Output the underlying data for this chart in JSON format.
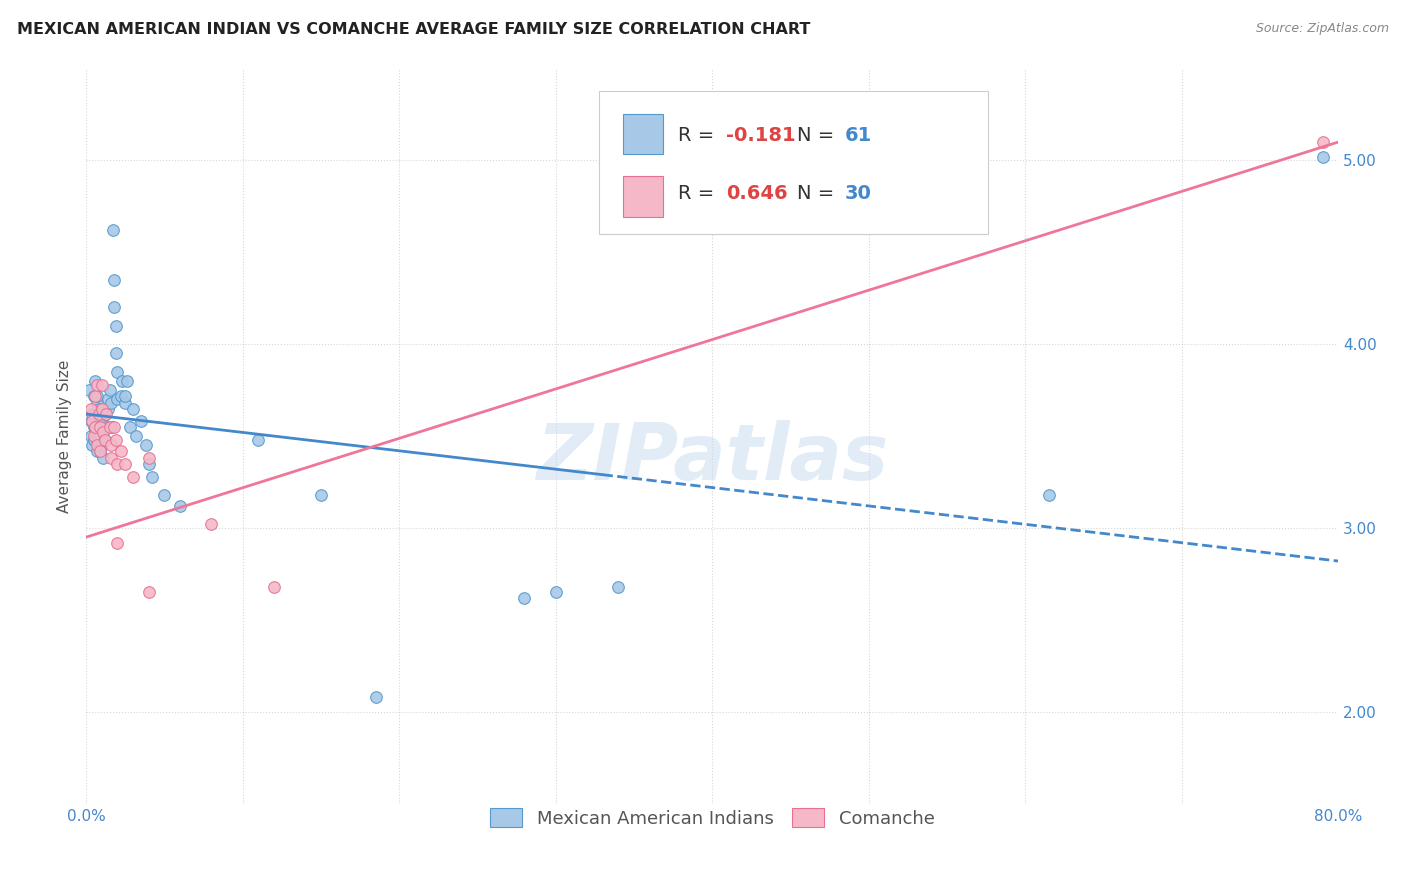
{
  "title": "MEXICAN AMERICAN INDIAN VS COMANCHE AVERAGE FAMILY SIZE CORRELATION CHART",
  "source": "Source: ZipAtlas.com",
  "ylabel": "Average Family Size",
  "xlim": [
    0,
    0.8
  ],
  "ylim": [
    1.5,
    5.5
  ],
  "yticks": [
    2.0,
    3.0,
    4.0,
    5.0
  ],
  "xticks": [
    0.0,
    0.1,
    0.2,
    0.3,
    0.4,
    0.5,
    0.6,
    0.7,
    0.8
  ],
  "xticklabels": [
    "0.0%",
    "",
    "",
    "",
    "",
    "",
    "",
    "",
    "80.0%"
  ],
  "watermark": "ZIPatlas",
  "legend_labels": [
    "Mexican American Indians",
    "Comanche"
  ],
  "blue_color": "#a8c8e8",
  "pink_color": "#f4b8c8",
  "blue_edge_color": "#5599cc",
  "pink_edge_color": "#e87090",
  "blue_line_color": "#4488cc",
  "pink_line_color": "#ee7799",
  "R_blue": -0.181,
  "N_blue": 61,
  "R_pink": 0.646,
  "N_pink": 30,
  "blue_trend_x": [
    0.0,
    0.8
  ],
  "blue_trend_y": [
    3.62,
    2.82
  ],
  "pink_trend_x": [
    0.0,
    0.8
  ],
  "pink_trend_y": [
    2.95,
    5.1
  ],
  "blue_solid_cutoff": 0.33,
  "blue_points": [
    [
      0.002,
      3.75
    ],
    [
      0.003,
      3.58
    ],
    [
      0.003,
      3.5
    ],
    [
      0.004,
      3.62
    ],
    [
      0.004,
      3.45
    ],
    [
      0.005,
      3.72
    ],
    [
      0.005,
      3.55
    ],
    [
      0.005,
      3.48
    ],
    [
      0.006,
      3.8
    ],
    [
      0.006,
      3.62
    ],
    [
      0.006,
      3.55
    ],
    [
      0.007,
      3.68
    ],
    [
      0.007,
      3.72
    ],
    [
      0.007,
      3.48
    ],
    [
      0.007,
      3.42
    ],
    [
      0.008,
      3.55
    ],
    [
      0.008,
      3.65
    ],
    [
      0.009,
      3.6
    ],
    [
      0.009,
      3.5
    ],
    [
      0.009,
      3.42
    ],
    [
      0.01,
      3.58
    ],
    [
      0.01,
      3.45
    ],
    [
      0.011,
      3.52
    ],
    [
      0.011,
      3.38
    ],
    [
      0.012,
      3.62
    ],
    [
      0.012,
      3.48
    ],
    [
      0.013,
      3.55
    ],
    [
      0.014,
      3.65
    ],
    [
      0.014,
      3.7
    ],
    [
      0.015,
      3.75
    ],
    [
      0.016,
      3.68
    ],
    [
      0.016,
      3.55
    ],
    [
      0.017,
      4.62
    ],
    [
      0.018,
      4.35
    ],
    [
      0.018,
      4.2
    ],
    [
      0.019,
      4.1
    ],
    [
      0.019,
      3.95
    ],
    [
      0.02,
      3.85
    ],
    [
      0.02,
      3.7
    ],
    [
      0.022,
      3.72
    ],
    [
      0.023,
      3.8
    ],
    [
      0.025,
      3.68
    ],
    [
      0.025,
      3.72
    ],
    [
      0.026,
      3.8
    ],
    [
      0.028,
      3.55
    ],
    [
      0.03,
      3.65
    ],
    [
      0.032,
      3.5
    ],
    [
      0.035,
      3.58
    ],
    [
      0.038,
      3.45
    ],
    [
      0.04,
      3.35
    ],
    [
      0.042,
      3.28
    ],
    [
      0.05,
      3.18
    ],
    [
      0.06,
      3.12
    ],
    [
      0.11,
      3.48
    ],
    [
      0.15,
      3.18
    ],
    [
      0.185,
      2.08
    ],
    [
      0.28,
      2.62
    ],
    [
      0.3,
      2.65
    ],
    [
      0.34,
      2.68
    ],
    [
      0.615,
      3.18
    ],
    [
      0.79,
      5.02
    ]
  ],
  "pink_points": [
    [
      0.003,
      3.65
    ],
    [
      0.004,
      3.58
    ],
    [
      0.005,
      3.5
    ],
    [
      0.006,
      3.72
    ],
    [
      0.006,
      3.55
    ],
    [
      0.007,
      3.78
    ],
    [
      0.007,
      3.45
    ],
    [
      0.008,
      3.62
    ],
    [
      0.009,
      3.55
    ],
    [
      0.009,
      3.42
    ],
    [
      0.01,
      3.78
    ],
    [
      0.01,
      3.65
    ],
    [
      0.011,
      3.52
    ],
    [
      0.012,
      3.48
    ],
    [
      0.013,
      3.62
    ],
    [
      0.015,
      3.55
    ],
    [
      0.016,
      3.45
    ],
    [
      0.016,
      3.38
    ],
    [
      0.018,
      3.55
    ],
    [
      0.019,
      3.48
    ],
    [
      0.02,
      3.35
    ],
    [
      0.022,
      3.42
    ],
    [
      0.025,
      3.35
    ],
    [
      0.03,
      3.28
    ],
    [
      0.04,
      3.38
    ],
    [
      0.08,
      3.02
    ],
    [
      0.12,
      2.68
    ],
    [
      0.02,
      2.92
    ],
    [
      0.04,
      2.65
    ],
    [
      0.79,
      5.1
    ]
  ]
}
